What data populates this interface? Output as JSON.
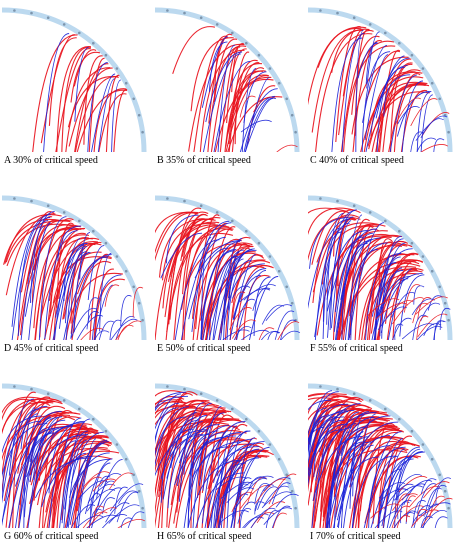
{
  "panels": [
    {
      "letter": "A",
      "caption": "A 30% of critical speed",
      "critical_speed_percent": 30
    },
    {
      "letter": "B",
      "caption": "B 35% of critical speed",
      "critical_speed_percent": 35
    },
    {
      "letter": "C",
      "caption": "C 40% of critical speed",
      "critical_speed_percent": 40
    },
    {
      "letter": "D",
      "caption": "D 45% of critical speed",
      "critical_speed_percent": 45
    },
    {
      "letter": "E",
      "caption": "E 50% of critical speed",
      "critical_speed_percent": 50
    },
    {
      "letter": "F",
      "caption": "F 55% of critical speed",
      "critical_speed_percent": 55
    },
    {
      "letter": "G",
      "caption": "G 60% of critical speed",
      "critical_speed_percent": 60
    },
    {
      "letter": "H",
      "caption": "H 65% of critical speed",
      "critical_speed_percent": 65
    },
    {
      "letter": "I",
      "caption": "I 70% of critical speed",
      "critical_speed_percent": 70
    }
  ],
  "colors": {
    "trajectory_primary": "#e8141e",
    "trajectory_secondary": "#1a22d8",
    "mill_shell": "#bcd9ef",
    "liner_marks": "#7d95ad",
    "caption_text": "#000000"
  }
}
